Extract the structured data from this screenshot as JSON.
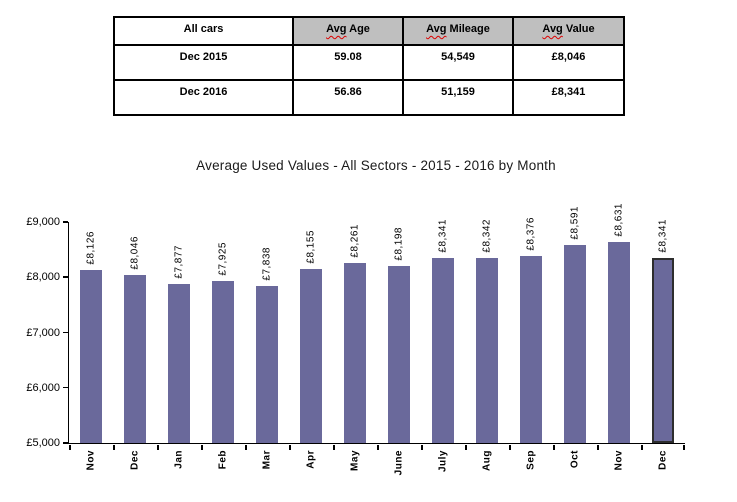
{
  "table": {
    "header": {
      "col0": "All cars",
      "cols": [
        {
          "prefix": "Avg",
          "rest": "Age"
        },
        {
          "prefix": "Avg",
          "rest": "Mileage"
        },
        {
          "prefix": "Avg",
          "rest": "Value"
        }
      ]
    },
    "rows": [
      {
        "label": "Dec 2015",
        "avg_age": "59.08",
        "avg_mileage": "54,549",
        "avg_value": "£8,046"
      },
      {
        "label": "Dec 2016",
        "avg_age": "56.86",
        "avg_mileage": "51,159",
        "avg_value": "£8,341"
      }
    ],
    "header_bg": "#bfbfbf",
    "spellcheck_underline_color": "#dd0000"
  },
  "chart_data": {
    "type": "bar",
    "title": "Average Used Values - All Sectors - 2015 - 2016 by Month",
    "categories": [
      "Nov",
      "Dec",
      "Jan",
      "Feb",
      "Mar",
      "Apr",
      "May",
      "June",
      "July",
      "Aug",
      "Sep",
      "Oct",
      "Nov",
      "Dec"
    ],
    "values": [
      8126,
      8046,
      7877,
      7925,
      7838,
      8155,
      8261,
      8198,
      8341,
      8342,
      8376,
      8591,
      8631,
      8341
    ],
    "value_labels": [
      "£8,126",
      "£8,046",
      "£7,877",
      "£7,925",
      "£7,838",
      "£8,155",
      "£8,261",
      "£8,198",
      "£8,341",
      "£8,342",
      "£8,376",
      "£8,591",
      "£8,631",
      "£8,341"
    ],
    "xlabel": "",
    "ylabel": "",
    "ylim": [
      5000,
      9000
    ],
    "yticks": [
      "£9,000",
      "£8,000",
      "£7,000",
      "£6,000",
      "£5,000"
    ],
    "grid": false,
    "legend": "none",
    "bar_color": "#6a699b",
    "highlight_index": 13,
    "highlight_border_color": "#2e2e2e"
  }
}
